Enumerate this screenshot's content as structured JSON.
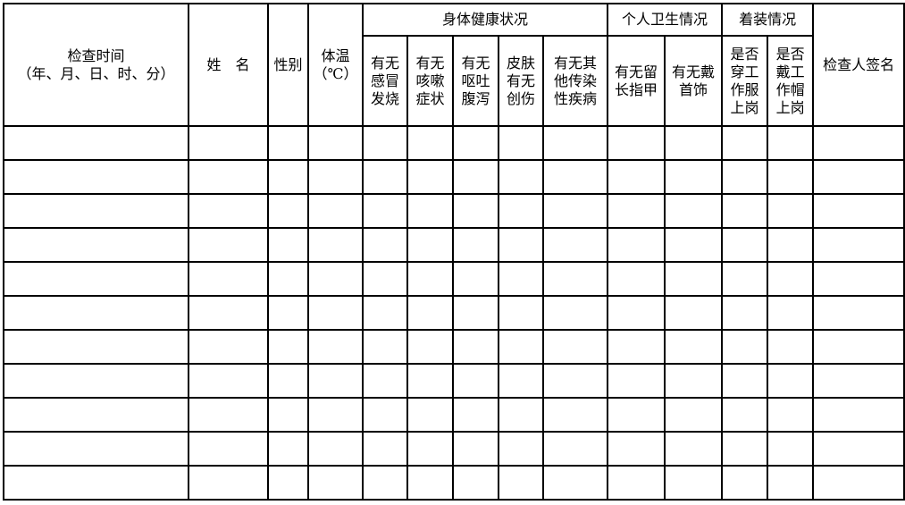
{
  "headers": {
    "time": "检查时间\n（年、月、日、时、分）",
    "name": "姓　名",
    "gender": "性别",
    "temperature": "体温\n（℃）",
    "health_group": "身体健康状况",
    "hygiene_group": "个人卫生情况",
    "dress_group": "着装情况",
    "signature": "检查人签名",
    "health": [
      "有无\n感冒\n发烧",
      "有无\n咳嗽\n症状",
      "有无\n呕吐\n腹泻",
      "皮肤\n有无\n创伤",
      "有无其\n他传染\n性疾病"
    ],
    "hygiene": [
      "有无留\n长指甲",
      "有无戴\n首饰"
    ],
    "dress": [
      "是否\n穿工\n作服\n上岗",
      "是否\n戴工\n作帽\n上岗"
    ]
  },
  "rows": [
    [],
    [],
    [],
    [],
    [],
    [],
    [],
    [],
    [],
    [],
    []
  ]
}
